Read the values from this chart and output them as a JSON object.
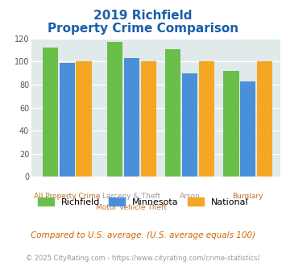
{
  "title_line1": "2019 Richfield",
  "title_line2": "Property Crime Comparison",
  "cat_labels_top": [
    "",
    "Larceny & Theft",
    "Arson",
    ""
  ],
  "cat_labels_bot": [
    "All Property Crime",
    "Motor Vehicle Theft",
    "",
    "Burglary"
  ],
  "richfield": [
    112,
    117,
    111,
    92
  ],
  "minnesota": [
    99,
    103,
    90,
    83
  ],
  "national": [
    100,
    100,
    100,
    100
  ],
  "color_richfield": "#6abf4b",
  "color_minnesota": "#4a90d9",
  "color_national": "#f5a623",
  "ylim": [
    0,
    120
  ],
  "yticks": [
    0,
    20,
    40,
    60,
    80,
    100,
    120
  ],
  "bg_color": "#e0eaea",
  "title_color": "#1a5fa8",
  "xlabel_top_color": "#999999",
  "xlabel_bot_color": "#b87333",
  "note_color": "#cc6600",
  "footer_color": "#999999",
  "note_text": "Compared to U.S. average. (U.S. average equals 100)",
  "footer_text": "© 2025 CityRating.com - https://www.cityrating.com/crime-statistics/",
  "legend_labels": [
    "Richfield",
    "Minnesota",
    "National"
  ]
}
